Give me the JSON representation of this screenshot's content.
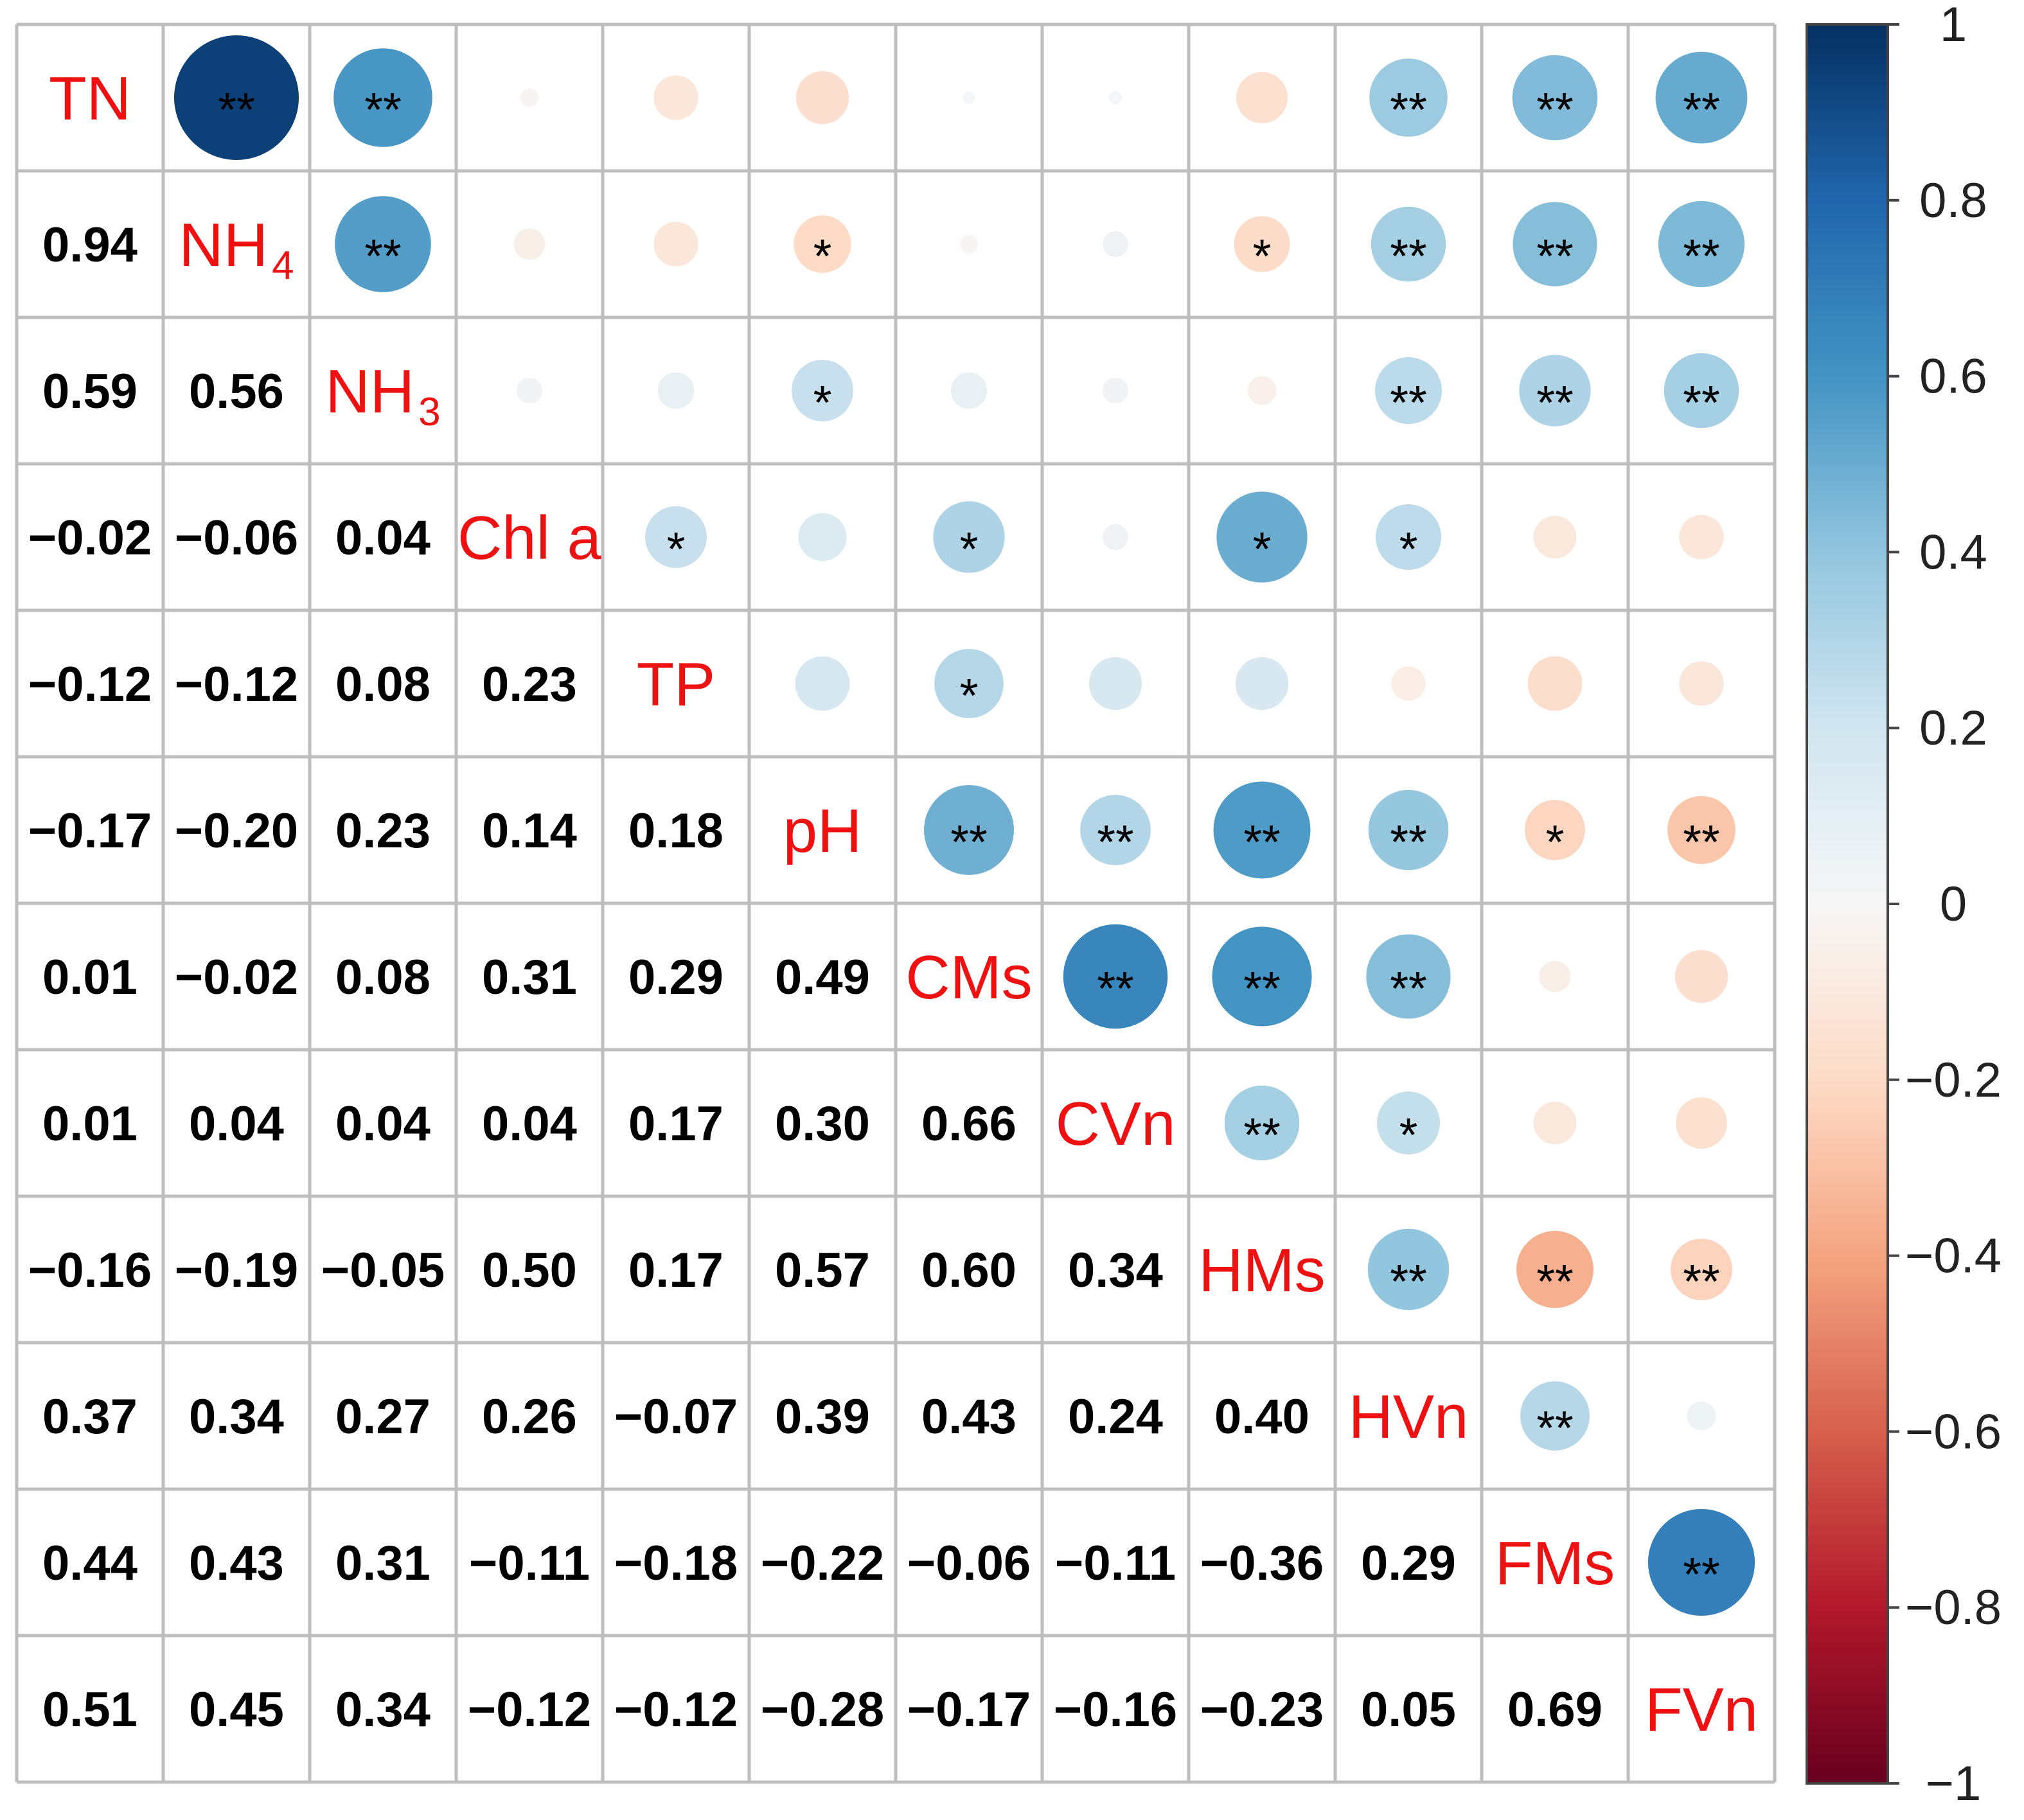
{
  "chart_data": {
    "type": "heatmap",
    "variables": [
      {
        "base": "TN",
        "sub": ""
      },
      {
        "base": "NH",
        "sub": "4"
      },
      {
        "base": "NH",
        "sub": "3"
      },
      {
        "base": "Chl a",
        "sub": ""
      },
      {
        "base": "TP",
        "sub": ""
      },
      {
        "base": "pH",
        "sub": ""
      },
      {
        "base": "CMs",
        "sub": ""
      },
      {
        "base": "CVn",
        "sub": ""
      },
      {
        "base": "HMs",
        "sub": ""
      },
      {
        "base": "HVn",
        "sub": ""
      },
      {
        "base": "FMs",
        "sub": ""
      },
      {
        "base": "FVn",
        "sub": ""
      }
    ],
    "lower_labels": [
      [],
      [
        "0.94"
      ],
      [
        "0.59",
        "0.56"
      ],
      [
        "−0.02",
        "−0.06",
        "0.04"
      ],
      [
        "−0.12",
        "−0.12",
        "0.08",
        "0.23"
      ],
      [
        "−0.17",
        "−0.20",
        "0.23",
        "0.14",
        "0.18"
      ],
      [
        "0.01",
        "−0.02",
        "0.08",
        "0.31",
        "0.29",
        "0.49"
      ],
      [
        "0.01",
        "0.04",
        "0.04",
        "0.04",
        "0.17",
        "0.30",
        "0.66"
      ],
      [
        "−0.16",
        "−0.19",
        "−0.05",
        "0.50",
        "0.17",
        "0.57",
        "0.60",
        "0.34"
      ],
      [
        "0.37",
        "0.34",
        "0.27",
        "0.26",
        "−0.07",
        "0.39",
        "0.43",
        "0.24",
        "0.40"
      ],
      [
        "0.44",
        "0.43",
        "0.31",
        "−0.11",
        "−0.18",
        "−0.22",
        "−0.06",
        "−0.11",
        "−0.36",
        "0.29"
      ],
      [
        "0.51",
        "0.45",
        "0.34",
        "−0.12",
        "−0.12",
        "−0.28",
        "−0.17",
        "−0.16",
        "−0.23",
        "0.05",
        "0.69"
      ]
    ],
    "upper_values": [
      [
        0.94,
        0.59,
        -0.02,
        -0.12,
        -0.17,
        0.01,
        0.01,
        -0.16,
        0.37,
        0.44,
        0.51
      ],
      [
        0.56,
        -0.06,
        -0.12,
        -0.2,
        -0.02,
        0.04,
        -0.19,
        0.34,
        0.43,
        0.45
      ],
      [
        0.04,
        0.08,
        0.23,
        0.08,
        0.04,
        -0.05,
        0.27,
        0.31,
        0.34
      ],
      [
        0.23,
        0.14,
        0.31,
        0.04,
        0.5,
        0.26,
        -0.11,
        -0.12
      ],
      [
        0.18,
        0.29,
        0.17,
        0.17,
        -0.07,
        -0.18,
        -0.12
      ],
      [
        0.49,
        0.3,
        0.57,
        0.39,
        -0.22,
        -0.28
      ],
      [
        0.66,
        0.6,
        0.43,
        -0.06,
        -0.17
      ],
      [
        0.34,
        0.24,
        -0.11,
        -0.16
      ],
      [
        0.4,
        -0.36,
        -0.23
      ],
      [
        0.29,
        0.05
      ],
      [
        0.69
      ]
    ],
    "upper_significance": [
      [
        "**",
        "**",
        "",
        "",
        "",
        "",
        "",
        "",
        "**",
        "**",
        "**"
      ],
      [
        "**",
        "",
        "",
        "*",
        "",
        "",
        "*",
        "**",
        "**",
        "**"
      ],
      [
        "",
        "",
        "*",
        "",
        "",
        "",
        "**",
        "**",
        "**"
      ],
      [
        "*",
        "",
        "*",
        "",
        "*",
        "*",
        "",
        ""
      ],
      [
        "",
        "*",
        "",
        "",
        "",
        "",
        ""
      ],
      [
        "**",
        "**",
        "**",
        "**",
        "*",
        "**"
      ],
      [
        "**",
        "**",
        "**",
        "",
        ""
      ],
      [
        "**",
        "*",
        "",
        ""
      ],
      [
        "**",
        "**",
        "**"
      ],
      [
        "**",
        ""
      ],
      [
        "**"
      ]
    ],
    "colorbar": {
      "range": [
        -1,
        1
      ],
      "ticks": [
        "1",
        "0.8",
        "0.6",
        "0.4",
        "0.2",
        "0",
        "−0.2",
        "−0.4",
        "−0.6",
        "−0.8",
        "−1"
      ],
      "tick_values": [
        1,
        0.8,
        0.6,
        0.4,
        0.2,
        0,
        -0.2,
        -0.4,
        -0.6,
        -0.8,
        -1
      ],
      "colors": {
        "pos_1.0": "#053061",
        "pos_0.8": "#2166ac",
        "pos_0.6": "#4393c3",
        "pos_0.4": "#92c5de",
        "pos_0.2": "#d1e5f0",
        "zero": "#f7f7f7",
        "neg_0.2": "#fddbc7",
        "neg_0.4": "#f4a582",
        "neg_0.6": "#d6604d",
        "neg_0.8": "#b2182b",
        "neg_1.0": "#67001f"
      },
      "legend_position": "right"
    },
    "label_color": "#ee1111"
  }
}
